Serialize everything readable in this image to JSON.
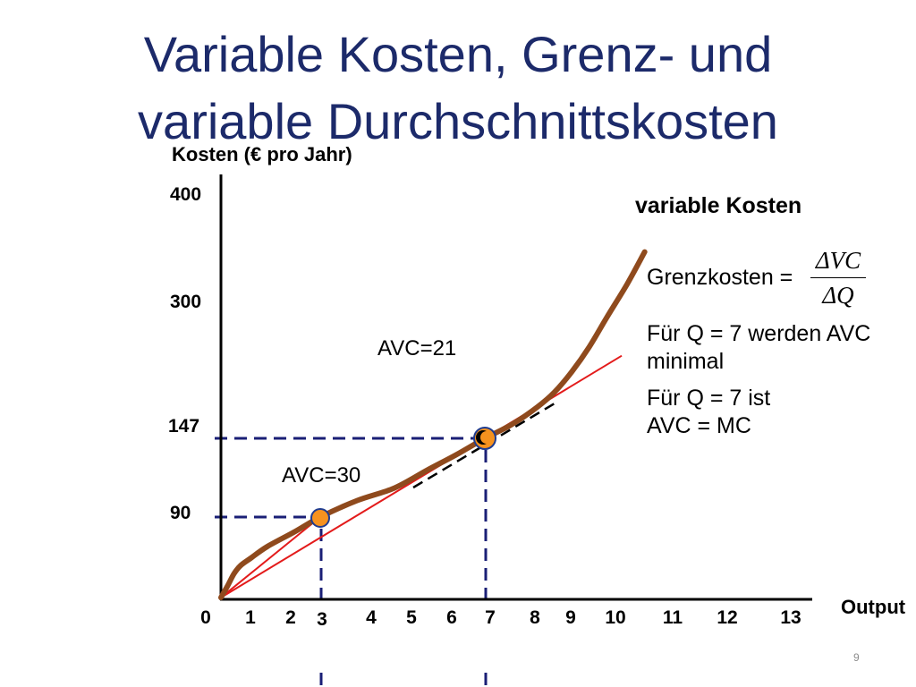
{
  "slide": {
    "title_line1": "Variable Kosten, Grenz- und",
    "title_line2": "variable Durchschnittskosten",
    "page_number": "9",
    "title_color": "#1c2a6a"
  },
  "chart_data": {
    "type": "line",
    "title": "",
    "xlabel": "Output",
    "ylabel": "Kosten (€ pro Jahr)",
    "x_ticks": [
      "0",
      "1",
      "2",
      "3",
      "4",
      "5",
      "6",
      "7",
      "8",
      "9",
      "10",
      "11",
      "12",
      "13"
    ],
    "y_ticks": [
      "400",
      "300",
      "147",
      "90"
    ],
    "xlim": [
      0,
      13
    ],
    "ylim": [
      0,
      400
    ],
    "grid": false,
    "series": [
      {
        "name": "variable Kosten",
        "color": "#8f4a1d",
        "x": [
          0,
          0.2,
          0.4,
          0.6,
          0.9,
          1.4,
          2.2,
          3,
          3.9,
          4.8,
          5.6,
          6.3,
          7,
          7.6,
          8.2,
          8.6,
          9,
          9.4,
          9.8,
          10.2,
          10.5
        ],
        "y": [
          0,
          13,
          27,
          36,
          44,
          57,
          73,
          90,
          102,
          111,
          124,
          135,
          147,
          162,
          182,
          199,
          222,
          250,
          283,
          317,
          347
        ]
      }
    ],
    "points": [
      {
        "x": 3,
        "y": 90,
        "label": "AVC=30"
      },
      {
        "x": 7,
        "y": 147,
        "label": "AVC=21"
      }
    ],
    "ray_color": "#e31b1b",
    "tangent": {
      "x": 7,
      "y": 147,
      "color": "#000000"
    },
    "guide_color": "#1a1f76",
    "marker_color": "#f6921e",
    "marker_outline": "#1f3c8f"
  },
  "annotations": {
    "grenzkosten_label": "Grenzkosten =",
    "grenzkosten_numerator": "ΔVC",
    "grenzkosten_denominator": "ΔQ",
    "note1": [
      "Für Q = 7 werden AVC",
      "minimal"
    ],
    "note2": [
      "Für Q = 7 ist",
      "AVC = MC"
    ]
  }
}
